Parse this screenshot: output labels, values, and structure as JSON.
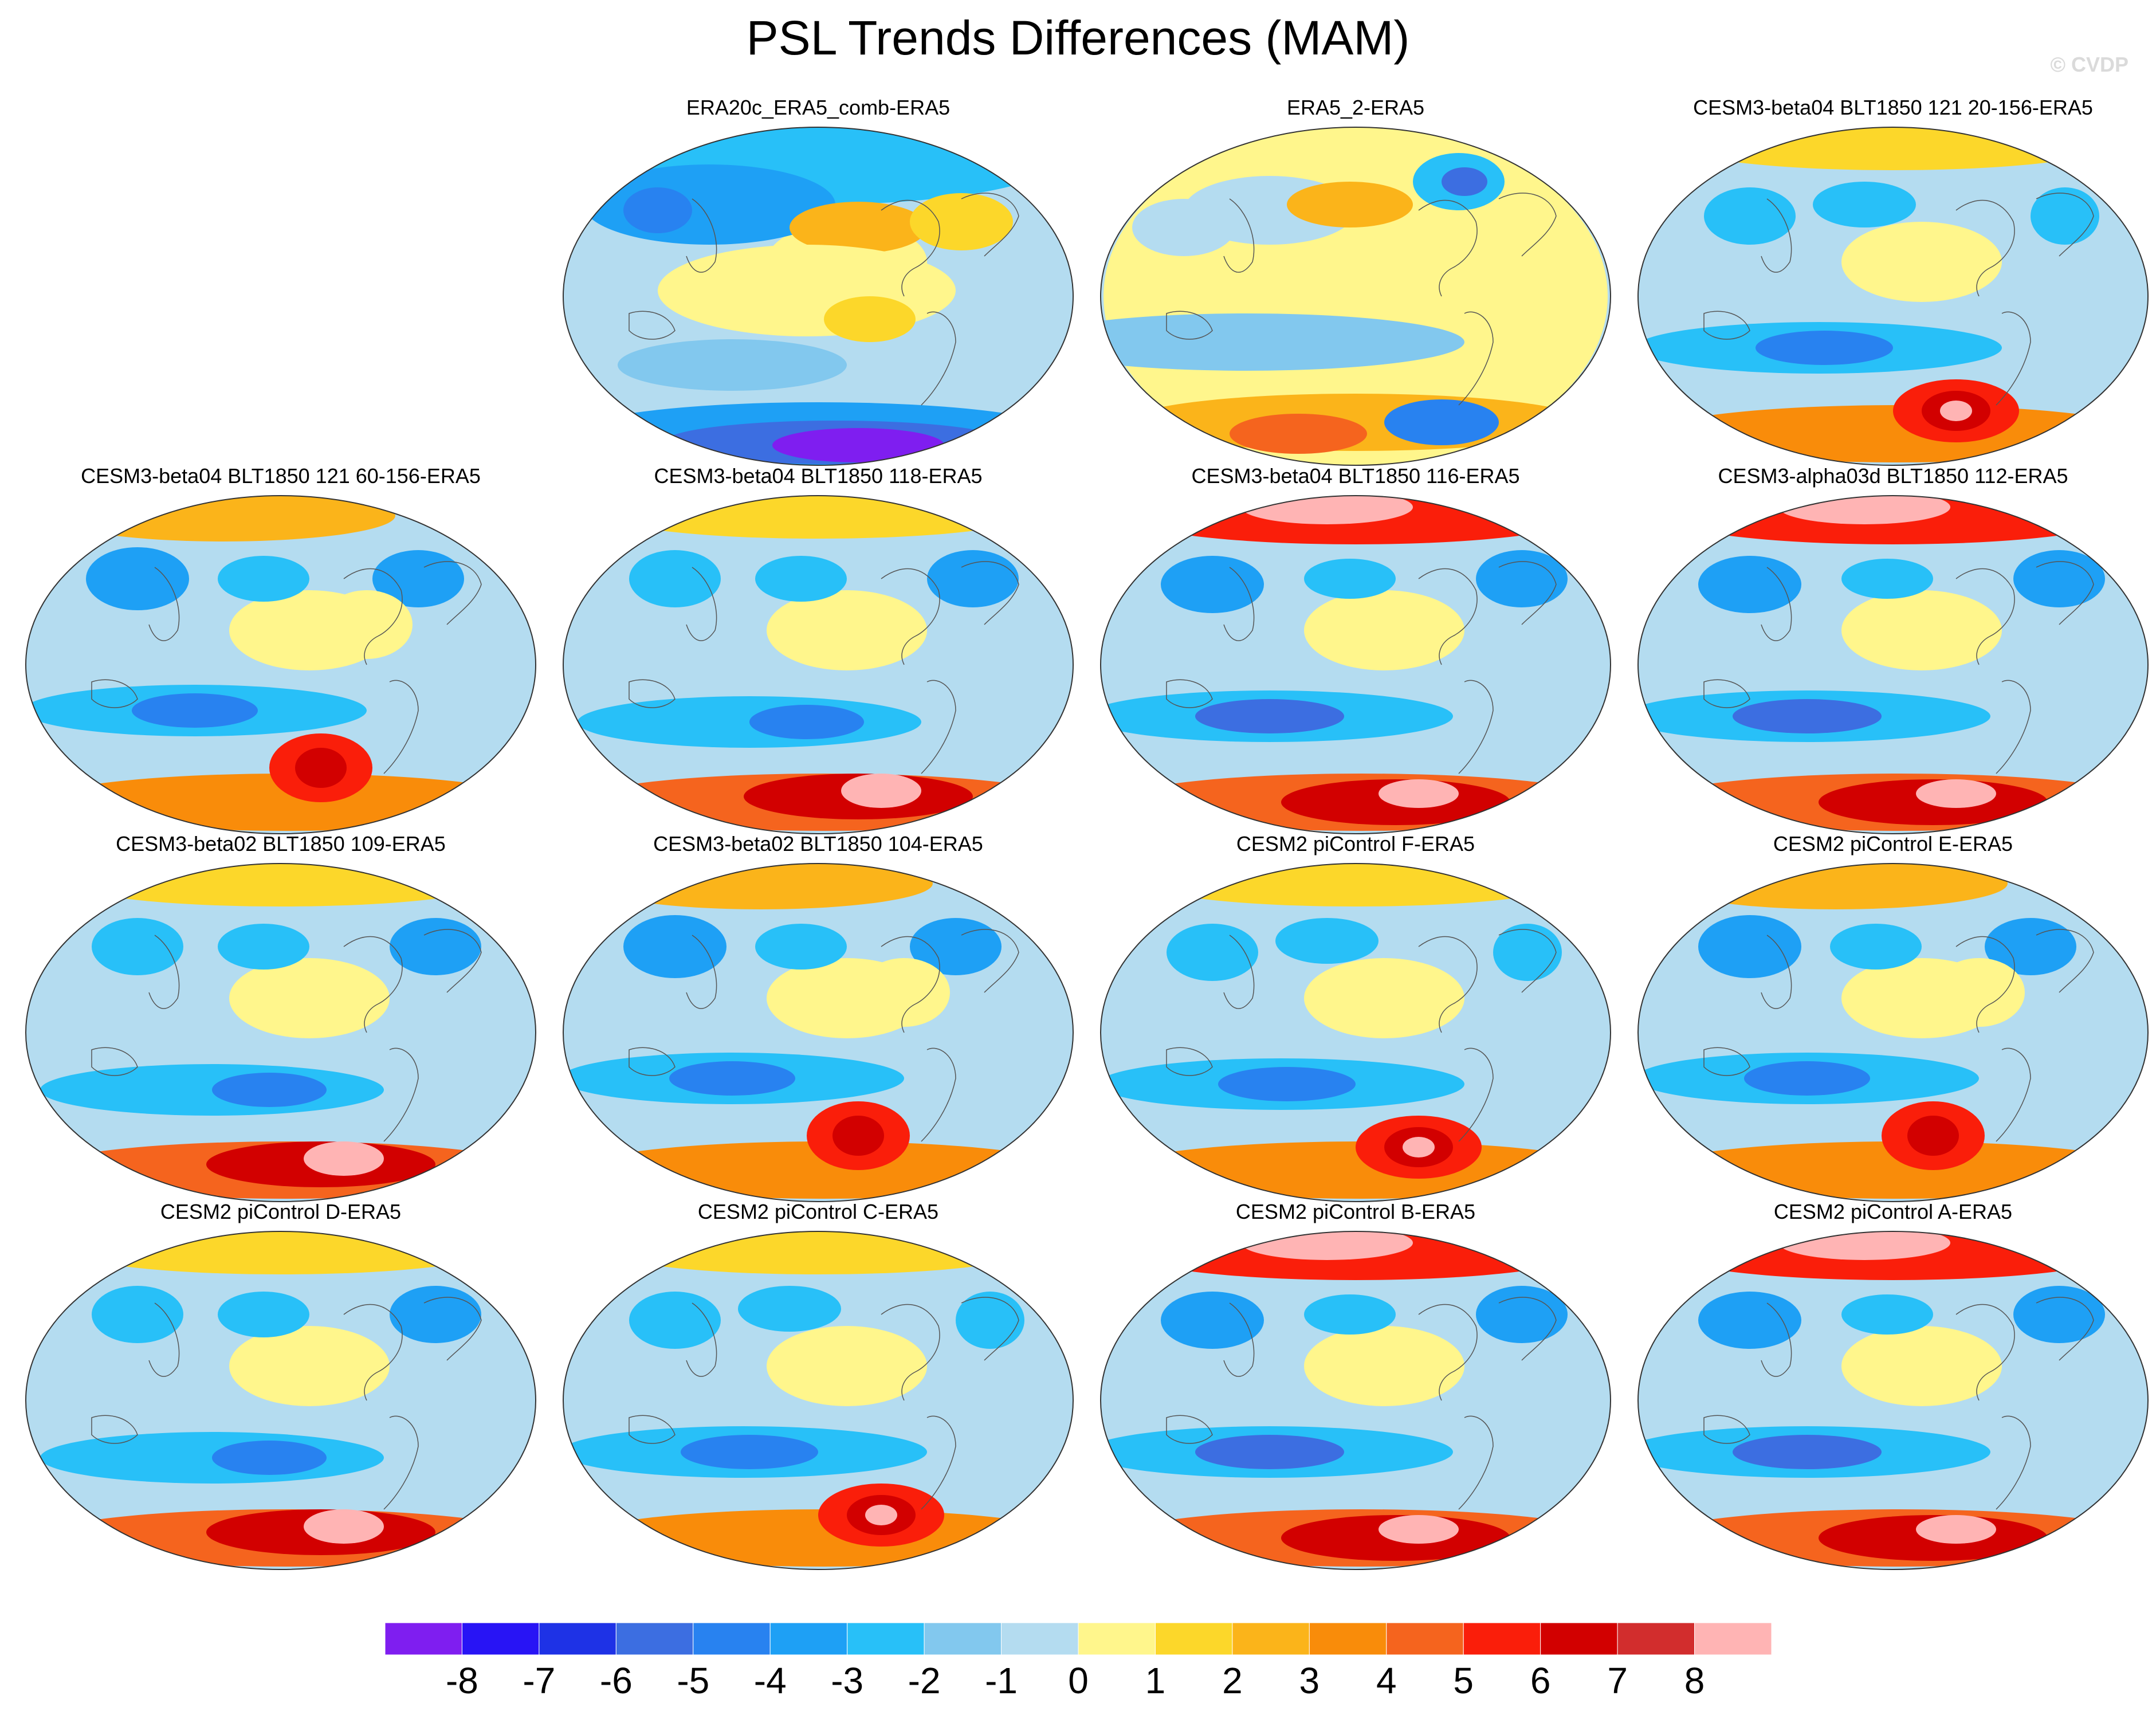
{
  "title": "PSL Trends Differences (MAM)",
  "credit": "© CVDP",
  "panels": [
    {
      "title": "ERA20c_ERA5_comb-ERA5",
      "variant": 0
    },
    {
      "title": "ERA5_2-ERA5",
      "variant": 1
    },
    {
      "title": "CESM3-beta04 BLT1850 121 20-156-ERA5",
      "variant": 2
    },
    {
      "title": "CESM3-beta04 BLT1850 121 60-156-ERA5",
      "variant": 3
    },
    {
      "title": "CESM3-beta04 BLT1850 118-ERA5",
      "variant": 4
    },
    {
      "title": "CESM3-beta04 BLT1850 116-ERA5",
      "variant": 5
    },
    {
      "title": "CESM3-alpha03d BLT1850 112-ERA5",
      "variant": 5
    },
    {
      "title": "CESM3-beta02 BLT1850 109-ERA5",
      "variant": 4
    },
    {
      "title": "CESM3-beta02 BLT1850 104-ERA5",
      "variant": 3
    },
    {
      "title": "CESM2 piControl F-ERA5",
      "variant": 2
    },
    {
      "title": "CESM2 piControl E-ERA5",
      "variant": 3
    },
    {
      "title": "CESM2 piControl D-ERA5",
      "variant": 4
    },
    {
      "title": "CESM2 piControl C-ERA5",
      "variant": 2
    },
    {
      "title": "CESM2 piControl B-ERA5",
      "variant": 5
    },
    {
      "title": "CESM2 piControl A-ERA5",
      "variant": 5
    }
  ],
  "colorbar": {
    "colors": [
      "#7f1ef0",
      "#2814f5",
      "#1e32e6",
      "#3c6ee1",
      "#2882f0",
      "#1ea0f5",
      "#28c0f8",
      "#82c8ee",
      "#b4dcf0",
      "#fff68c",
      "#fcd72a",
      "#fbb41a",
      "#f98c0a",
      "#f5641e",
      "#fa1e0a",
      "#d20000",
      "#d22d2d",
      "#ffb4b4"
    ],
    "levels": [
      "-8",
      "-7",
      "-6",
      "-5",
      "-4",
      "-3",
      "-2",
      "-1",
      "0",
      "1",
      "2",
      "3",
      "4",
      "5",
      "6",
      "7",
      "8"
    ]
  },
  "colors": {
    "neutral_blue": "#b4dcf0",
    "neutral_yellow": "#fff68c",
    "coastline": "#555555"
  }
}
